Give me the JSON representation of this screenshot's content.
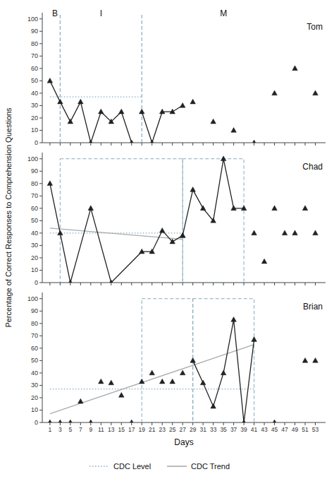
{
  "chart_data": [
    {
      "type": "line",
      "title": "Tom",
      "xlim": [
        -0.5,
        55
      ],
      "ylim": [
        0,
        105
      ],
      "xticks": [
        1,
        3,
        5,
        7,
        9,
        11,
        13,
        15,
        17,
        19,
        21,
        23,
        25,
        27,
        29,
        31,
        33,
        35,
        37,
        39,
        41,
        43,
        45,
        47,
        49,
        51,
        53
      ],
      "yticks": [
        0,
        10,
        20,
        30,
        40,
        50,
        60,
        70,
        80,
        90,
        100
      ],
      "tick_labels": "y",
      "grid": false,
      "vlines": [
        {
          "value": 3,
          "color": "#87AABF",
          "line_style": "dashed"
        },
        {
          "value": 19,
          "color": "#87AABF",
          "line_style": "dashed"
        }
      ],
      "annotations": [
        {
          "text": "B",
          "x": 2,
          "y": 102
        },
        {
          "text": "I",
          "x": 11,
          "y": 102
        },
        {
          "text": "M",
          "x": 35,
          "y": 102
        }
      ],
      "series": [
        {
          "name": "CDC Level",
          "type": "line",
          "x": [
            1,
            19
          ],
          "values": [
            37,
            37
          ],
          "color": "#87AABF",
          "line_style": "dotted"
        },
        {
          "type": "line",
          "x": [
            1,
            3,
            5,
            7,
            9,
            11,
            13,
            15,
            17
          ],
          "values": [
            50,
            33,
            17,
            33,
            0,
            25,
            17,
            25,
            0
          ],
          "color": "#222222",
          "marker": "triangle",
          "line_style": "solid"
        },
        {
          "type": "line",
          "x": [
            19,
            21,
            23,
            25,
            27
          ],
          "values": [
            25,
            0,
            25,
            25,
            30
          ],
          "color": "#222222",
          "marker": "triangle",
          "line_style": "solid"
        },
        {
          "type": "scatter",
          "x": [
            29,
            33,
            37,
            41,
            45,
            49,
            53
          ],
          "values": [
            33,
            17,
            10,
            0,
            40,
            60,
            40
          ],
          "color": "#222222",
          "marker": "triangle"
        }
      ]
    },
    {
      "type": "line",
      "title": "Chad",
      "ylabel": "Percentage of Correct Responses to Comprehension Questions",
      "xlim": [
        -0.5,
        55
      ],
      "ylim": [
        0,
        105
      ],
      "xticks": [
        1,
        3,
        5,
        7,
        9,
        11,
        13,
        15,
        17,
        19,
        21,
        23,
        25,
        27,
        29,
        31,
        33,
        35,
        37,
        39,
        41,
        43,
        45,
        47,
        49,
        51,
        53
      ],
      "yticks": [
        0,
        10,
        20,
        30,
        40,
        50,
        60,
        70,
        80,
        90,
        100
      ],
      "tick_labels": "y",
      "grid": false,
      "boxes": [
        {
          "x": [
            3,
            27
          ],
          "y": [
            0,
            100
          ],
          "color": "#87AABF",
          "line_style": "dashed"
        },
        {
          "x": [
            27,
            39
          ],
          "y": [
            0,
            100
          ],
          "color": "#87AABF",
          "line_style": "dashed"
        }
      ],
      "series": [
        {
          "name": "CDC Level",
          "type": "line",
          "x": [
            1,
            27
          ],
          "values": [
            40,
            40
          ],
          "color": "#87AABF",
          "line_style": "dotted"
        },
        {
          "name": "CDC Trend",
          "type": "line",
          "x": [
            1,
            27
          ],
          "values": [
            44,
            35
          ],
          "color": "#AAAAAA",
          "line_style": "solid"
        },
        {
          "type": "line",
          "x": [
            1,
            3,
            5,
            9,
            13,
            19,
            21,
            23,
            25,
            27
          ],
          "values": [
            80,
            40,
            0,
            60,
            0,
            25,
            25,
            42,
            33,
            38
          ],
          "color": "#222222",
          "marker": "triangle",
          "line_style": "solid"
        },
        {
          "type": "line",
          "x": [
            27,
            29,
            31,
            33,
            35,
            37,
            39
          ],
          "values": [
            38,
            75,
            60,
            50,
            100,
            60,
            60
          ],
          "color": "#222222",
          "marker": "triangle",
          "line_style": "solid"
        },
        {
          "type": "scatter",
          "x": [
            41,
            43,
            45,
            47,
            49,
            51,
            53
          ],
          "values": [
            40,
            17,
            60,
            40,
            40,
            60,
            40
          ],
          "color": "#222222",
          "marker": "triangle"
        }
      ]
    },
    {
      "type": "line",
      "title": "Brian",
      "xlabel": "Days",
      "xlim": [
        -0.5,
        55
      ],
      "ylim": [
        0,
        105
      ],
      "xticks": [
        1,
        3,
        5,
        7,
        9,
        11,
        13,
        15,
        17,
        19,
        21,
        23,
        25,
        27,
        29,
        31,
        33,
        35,
        37,
        39,
        41,
        43,
        45,
        47,
        49,
        51,
        53
      ],
      "yticks": [
        0,
        10,
        20,
        30,
        40,
        50,
        60,
        70,
        80,
        90,
        100
      ],
      "grid": false,
      "legend": "bottom",
      "boxes": [
        {
          "x": [
            19,
            29
          ],
          "y": [
            0,
            100
          ],
          "color": "#87AABF",
          "line_style": "dashed"
        },
        {
          "x": [
            29,
            41
          ],
          "y": [
            0,
            100
          ],
          "color": "#87AABF",
          "line_style": "dashed"
        }
      ],
      "series": [
        {
          "name": "CDC Level",
          "type": "line",
          "x": [
            1,
            41
          ],
          "values": [
            27,
            27
          ],
          "color": "#87AABF",
          "line_style": "dotted"
        },
        {
          "name": "CDC Trend",
          "type": "line",
          "x": [
            1,
            41
          ],
          "values": [
            7,
            63
          ],
          "color": "#AAAAAA",
          "line_style": "solid"
        },
        {
          "type": "line",
          "x": [
            29,
            31,
            33,
            35,
            37,
            39,
            41
          ],
          "values": [
            50,
            32,
            13,
            40,
            83,
            0,
            67
          ],
          "color": "#222222",
          "marker": "triangle",
          "line_style": "solid"
        },
        {
          "type": "scatter",
          "x": [
            1,
            3,
            5,
            7,
            9,
            11,
            13,
            15,
            17,
            19,
            21,
            23,
            25,
            27,
            45,
            51,
            53
          ],
          "values": [
            0,
            0,
            0,
            17,
            0,
            33,
            32,
            22,
            0,
            33,
            40,
            33,
            33,
            40,
            0,
            50,
            50
          ],
          "color": "#222222",
          "marker": "triangle"
        }
      ]
    }
  ]
}
